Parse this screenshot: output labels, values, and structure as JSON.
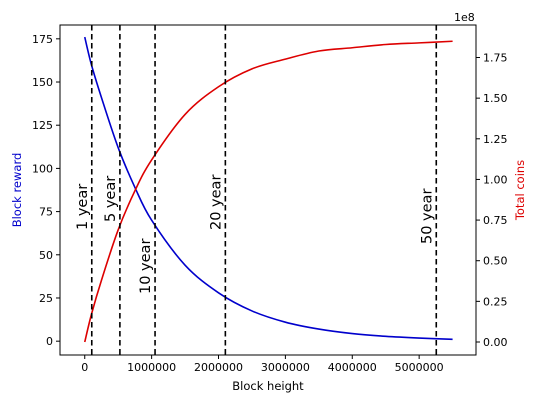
{
  "chart_data": {
    "type": "line",
    "xlabel": "Block height",
    "ylabel_left": "Block reward",
    "ylabel_right": "Total coins",
    "right_axis_multiplier": "1e8",
    "xlim": [
      -370000,
      5850000
    ],
    "ylim_left": [
      -8,
      183
    ],
    "ylim_right": [
      -0.08,
      1.95
    ],
    "x_ticks": [
      0,
      1000000,
      2000000,
      3000000,
      4000000,
      5000000
    ],
    "x_tick_labels": [
      "0",
      "1000000",
      "2000000",
      "3000000",
      "4000000",
      "5000000"
    ],
    "y_left_ticks": [
      0,
      25,
      50,
      75,
      100,
      125,
      150,
      175
    ],
    "y_left_tick_labels": [
      "0",
      "25",
      "50",
      "75",
      "100",
      "125",
      "150",
      "175"
    ],
    "y_right_ticks": [
      0,
      0.25,
      0.5,
      0.75,
      1.0,
      1.25,
      1.5,
      1.75
    ],
    "y_right_tick_labels": [
      "0.00",
      "0.25",
      "0.50",
      "0.75",
      "1.00",
      "1.25",
      "1.50",
      "1.75"
    ],
    "grid": false,
    "series": [
      {
        "axis": "left",
        "color": "#0000cc",
        "x": [
          0,
          100000,
          250000,
          500000,
          750000,
          1000000,
          1500000,
          2000000,
          2500000,
          3000000,
          3500000,
          4000000,
          4500000,
          5000000,
          5500000
        ],
        "values": [
          176,
          160,
          141,
          112,
          89,
          70,
          44,
          28,
          17.5,
          11,
          7,
          4.4,
          2.8,
          1.8,
          1.1
        ]
      },
      {
        "axis": "right",
        "color": "#dd0000",
        "x": [
          0,
          100000,
          250000,
          500000,
          750000,
          1000000,
          1500000,
          2000000,
          2500000,
          3000000,
          3500000,
          4000000,
          4500000,
          5000000,
          5500000
        ],
        "values": [
          0,
          0.17,
          0.38,
          0.69,
          0.93,
          1.12,
          1.4,
          1.57,
          1.68,
          1.74,
          1.79,
          1.81,
          1.83,
          1.84,
          1.85
        ]
      }
    ],
    "vlines": [
      {
        "x": 105000,
        "label": "1 year"
      },
      {
        "x": 525600,
        "label": "5 year"
      },
      {
        "x": 1051200,
        "label": "10 year"
      },
      {
        "x": 2102400,
        "label": "20 year"
      },
      {
        "x": 5256000,
        "label": "50 year"
      }
    ],
    "colors": {
      "left_axis": "#0000cc",
      "right_axis": "#dd0000",
      "vline": "#000000"
    }
  }
}
